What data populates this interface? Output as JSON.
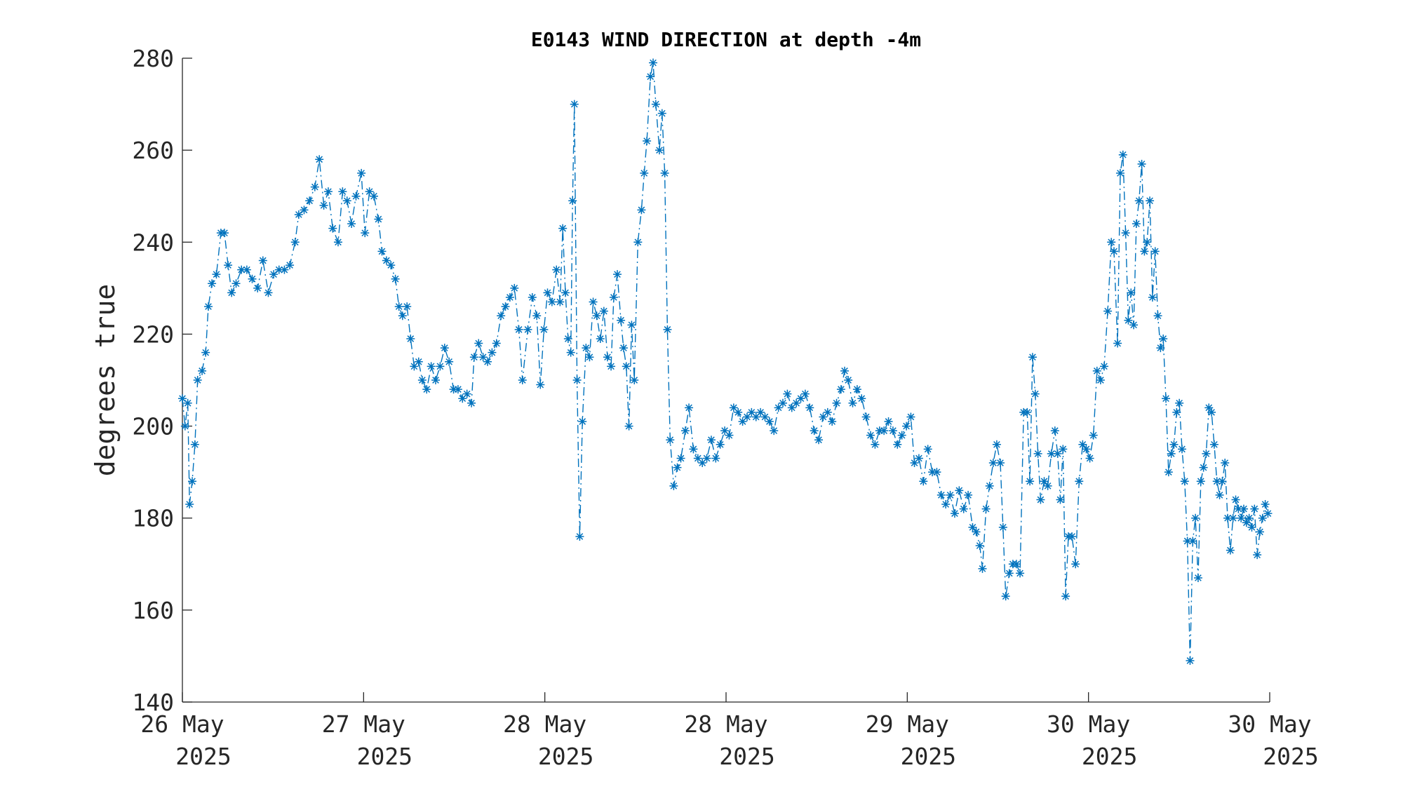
{
  "chart_data": {
    "type": "line",
    "title": "E0143 WIND DIRECTION at depth -4m",
    "y_label": "degrees true",
    "xlim": [
      0,
      1215
    ],
    "xticks": [
      {
        "value": 0,
        "label": "26 May 2025"
      },
      {
        "value": 202.5,
        "label": "27 May 2025"
      },
      {
        "value": 405,
        "label": "28 May 2025"
      },
      {
        "value": 607.5,
        "label": "28 May 2025"
      },
      {
        "value": 810,
        "label": "29 May 2025"
      },
      {
        "value": 1012.5,
        "label": "30 May 2025"
      },
      {
        "value": 1215,
        "label": "30 May 2025"
      }
    ],
    "ylim": [
      140,
      280
    ],
    "yticks": [
      140,
      160,
      180,
      200,
      220,
      240,
      260,
      280
    ],
    "x": [
      0,
      3,
      6,
      8,
      11,
      14,
      17,
      22,
      26,
      29,
      33,
      38,
      43,
      47,
      51,
      55,
      60,
      66,
      72,
      78,
      84,
      90,
      96,
      102,
      108,
      114,
      120,
      126,
      130,
      136,
      142,
      148,
      153,
      158,
      163,
      168,
      174,
      179,
      184,
      189,
      194,
      200,
      204,
      209,
      214,
      219,
      223,
      228,
      233,
      238,
      242,
      246,
      251,
      255,
      259,
      264,
      268,
      273,
      278,
      283,
      288,
      293,
      298,
      303,
      308,
      313,
      318,
      323,
      326,
      331,
      336,
      341,
      346,
      351,
      356,
      361,
      366,
      371,
      376,
      380,
      386,
      391,
      396,
      400,
      404,
      408,
      413,
      418,
      422,
      425,
      428,
      431,
      434,
      436,
      438,
      441,
      444,
      447,
      451,
      455,
      459,
      463,
      467,
      471,
      475,
      479,
      482,
      486,
      490,
      493,
      496,
      499,
      502,
      505,
      509,
      513,
      516,
      519,
      523,
      526,
      529,
      533,
      536,
      539,
      542,
      545,
      549,
      553,
      557,
      562,
      566,
      571,
      576,
      581,
      586,
      591,
      596,
      601,
      606,
      611,
      616,
      621,
      626,
      631,
      636,
      641,
      646,
      651,
      656,
      661,
      666,
      671,
      676,
      681,
      686,
      691,
      696,
      701,
      706,
      711,
      716,
      721,
      726,
      731,
      736,
      740,
      744,
      749,
      754,
      759,
      764,
      769,
      774,
      779,
      784,
      789,
      794,
      799,
      804,
      809,
      814,
      818,
      823,
      828,
      833,
      838,
      843,
      848,
      853,
      858,
      863,
      868,
      873,
      878,
      883,
      887,
      891,
      894,
      898,
      902,
      906,
      910,
      914,
      917,
      920,
      924,
      928,
      932,
      936,
      940,
      944,
      947,
      950,
      953,
      956,
      959,
      963,
      967,
      971,
      975,
      978,
      981,
      984,
      987,
      990,
      994,
      998,
      1002,
      1006,
      1010,
      1014,
      1018,
      1022,
      1026,
      1030,
      1034,
      1038,
      1041,
      1045,
      1048,
      1051,
      1054,
      1057,
      1060,
      1063,
      1066,
      1069,
      1072,
      1075,
      1078,
      1081,
      1084,
      1087,
      1090,
      1093,
      1096,
      1099,
      1102,
      1105,
      1108,
      1111,
      1114,
      1117,
      1120,
      1123,
      1126,
      1129,
      1132,
      1135,
      1138,
      1141,
      1144,
      1147,
      1150,
      1153,
      1156,
      1159,
      1162,
      1165,
      1168,
      1171,
      1174,
      1177,
      1180,
      1183,
      1186,
      1189,
      1192,
      1195,
      1198,
      1201,
      1204,
      1207,
      1210,
      1213
    ],
    "series": [
      {
        "color": "#0072bd",
        "values": [
          206,
          200,
          205,
          183,
          188,
          196,
          210,
          212,
          216,
          226,
          231,
          233,
          242,
          242,
          235,
          229,
          231,
          234,
          234,
          232,
          230,
          236,
          229,
          233,
          234,
          234,
          235,
          240,
          246,
          247,
          249,
          252,
          258,
          248,
          251,
          243,
          240,
          251,
          249,
          244,
          250,
          255,
          242,
          251,
          250,
          245,
          238,
          236,
          235,
          232,
          226,
          224,
          226,
          219,
          213,
          214,
          210,
          208,
          213,
          210,
          213,
          217,
          214,
          208,
          208,
          206,
          207,
          205,
          215,
          218,
          215,
          214,
          216,
          218,
          224,
          226,
          228,
          230,
          221,
          210,
          221,
          228,
          224,
          209,
          221,
          229,
          227,
          234,
          227,
          243,
          229,
          219,
          216,
          249,
          270,
          210,
          176,
          201,
          217,
          215,
          227,
          224,
          219,
          225,
          215,
          213,
          228,
          233,
          223,
          217,
          213,
          200,
          222,
          210,
          240,
          247,
          255,
          262,
          276,
          279,
          270,
          260,
          268,
          255,
          221,
          197,
          187,
          191,
          193,
          199,
          204,
          195,
          193,
          192,
          193,
          197,
          193,
          196,
          199,
          198,
          204,
          203,
          201,
          202,
          203,
          202,
          203,
          202,
          201,
          199,
          204,
          205,
          207,
          204,
          205,
          206,
          207,
          204,
          199,
          197,
          202,
          203,
          201,
          205,
          208,
          212,
          210,
          205,
          208,
          206,
          202,
          198,
          196,
          199,
          199,
          201,
          199,
          196,
          198,
          200,
          202,
          192,
          193,
          188,
          195,
          190,
          190,
          185,
          183,
          185,
          181,
          186,
          182,
          185,
          178,
          177,
          174,
          169,
          182,
          187,
          192,
          196,
          192,
          178,
          163,
          168,
          170,
          170,
          168,
          203,
          203,
          188,
          215,
          207,
          194,
          184,
          188,
          187,
          194,
          199,
          194,
          184,
          195,
          163,
          176,
          176,
          170,
          188,
          196,
          195,
          193,
          198,
          212,
          210,
          213,
          225,
          240,
          238,
          218,
          255,
          259,
          242,
          223,
          229,
          222,
          244,
          249,
          257,
          238,
          240,
          249,
          228,
          238,
          224,
          217,
          219,
          206,
          190,
          194,
          196,
          203,
          205,
          195,
          188,
          175,
          149,
          175,
          180,
          167,
          188,
          191,
          194,
          204,
          203,
          196,
          188,
          185,
          188,
          192,
          180,
          173,
          180,
          184,
          182,
          180,
          182,
          179,
          180,
          178,
          182,
          172,
          177,
          180,
          183,
          181
        ]
      }
    ]
  }
}
